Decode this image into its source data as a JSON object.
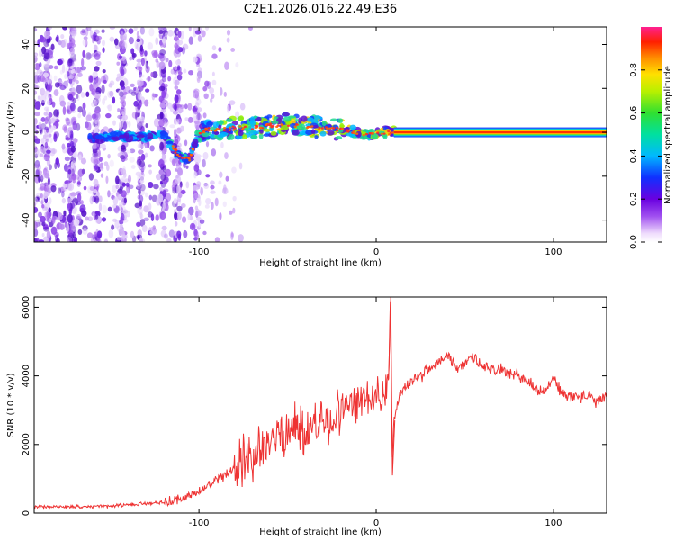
{
  "title": "C2E1.2026.016.22.49.E36",
  "chart_data": [
    {
      "type": "heatmap",
      "xlabel": "Height of straight line (km)",
      "ylabel": "Frequency (Hz)",
      "xlim": [
        -193,
        130
      ],
      "ylim": [
        -50,
        48
      ],
      "xticks": [
        -100,
        0,
        100
      ],
      "xtick_labels": [
        "-100",
        "0",
        "100"
      ],
      "yticks": [
        -40,
        -20,
        0,
        20,
        40
      ],
      "ytick_labels": [
        "-40",
        "-20",
        "0",
        "20",
        "40"
      ],
      "colorbar": {
        "label": "Normalized spectral amplitude",
        "range": [
          0,
          1
        ],
        "ticks": [
          0.0,
          0.2,
          0.4,
          0.6,
          0.8
        ],
        "tick_labels": [
          "0.0",
          "0.2",
          "0.4",
          "0.6",
          "0.8"
        ]
      },
      "ridge": {
        "x": [
          -160,
          -150,
          -140,
          -130,
          -120,
          -110,
          -105,
          -100,
          -95,
          -90,
          -80,
          -70,
          -60,
          -50,
          -40,
          -30,
          -20,
          -10,
          -5,
          0,
          5,
          10,
          20,
          40,
          60,
          80,
          100,
          120,
          130
        ],
        "y": [
          -3,
          -2,
          -2,
          -2,
          -1,
          -12,
          -12,
          0,
          1,
          1,
          2,
          2,
          3,
          4,
          3,
          2,
          1,
          0,
          -1,
          -1,
          0,
          0,
          0,
          0,
          0,
          0,
          0,
          0,
          0
        ]
      },
      "noise_region_x": [
        -193,
        -80
      ]
    },
    {
      "type": "line",
      "xlabel": "Height of straight line (km)",
      "ylabel": "SNR (10 * v/v)",
      "xlim": [
        -193,
        130
      ],
      "ylim": [
        0,
        6300
      ],
      "xticks": [
        -100,
        0,
        100
      ],
      "xtick_labels": [
        "-100",
        "0",
        "100"
      ],
      "yticks": [
        0,
        2000,
        4000,
        6000
      ],
      "ytick_labels": [
        "0",
        "2000",
        "4000",
        "6000"
      ],
      "series": [
        {
          "name": "SNR",
          "color": "#ee3333",
          "x": [
            -193,
            -170,
            -150,
            -130,
            -120,
            -110,
            -100,
            -90,
            -80,
            -70,
            -60,
            -50,
            -45,
            -40,
            -35,
            -30,
            -25,
            -20,
            -15,
            -10,
            -5,
            0,
            5,
            7,
            8,
            9,
            10,
            12,
            15,
            20,
            25,
            30,
            35,
            40,
            45,
            50,
            55,
            60,
            65,
            70,
            75,
            80,
            85,
            90,
            95,
            100,
            105,
            110,
            115,
            120,
            125,
            130
          ],
          "y": [
            180,
            180,
            200,
            280,
            320,
            420,
            620,
            950,
            1250,
            1650,
            2100,
            2400,
            2500,
            2400,
            2600,
            2650,
            2700,
            3000,
            3100,
            3200,
            3500,
            3450,
            3500,
            3900,
            6200,
            1500,
            2600,
            3200,
            3600,
            3900,
            4000,
            4200,
            4400,
            4650,
            4200,
            4300,
            4600,
            4300,
            4200,
            4200,
            4050,
            4000,
            3900,
            3600,
            3550,
            3950,
            3450,
            3400,
            3400,
            3400,
            3200,
            3450
          ]
        }
      ]
    }
  ]
}
